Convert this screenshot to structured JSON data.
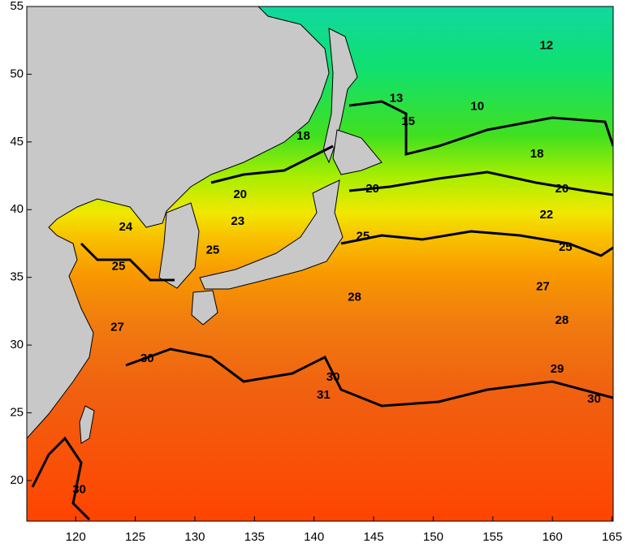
{
  "chart_data": {
    "type": "contour-map",
    "xlim": [
      115.9,
      165.1
    ],
    "ylim": [
      17,
      55
    ],
    "xticks": [
      120,
      125,
      130,
      135,
      140,
      145,
      150,
      155,
      160,
      165
    ],
    "yticks": [
      20,
      25,
      30,
      35,
      40,
      45,
      50,
      55
    ],
    "contour_labels": [
      {
        "value": 10,
        "lon": 153.7,
        "lat": 47.6
      },
      {
        "value": 12,
        "lon": 159.5,
        "lat": 52.1
      },
      {
        "value": 13,
        "lon": 146.9,
        "lat": 48.2
      },
      {
        "value": 15,
        "lon": 147.9,
        "lat": 46.5
      },
      {
        "value": 18,
        "lon": 139.1,
        "lat": 45.4
      },
      {
        "value": 18,
        "lon": 158.7,
        "lat": 44.1
      },
      {
        "value": 20,
        "lon": 133.8,
        "lat": 41.1
      },
      {
        "value": 20,
        "lon": 144.9,
        "lat": 41.5
      },
      {
        "value": 20,
        "lon": 160.8,
        "lat": 41.5
      },
      {
        "value": 22,
        "lon": 159.5,
        "lat": 39.6
      },
      {
        "value": 23,
        "lon": 133.6,
        "lat": 39.1
      },
      {
        "value": 24,
        "lon": 124.2,
        "lat": 38.7
      },
      {
        "value": 25,
        "lon": 131.5,
        "lat": 37.0
      },
      {
        "value": 25,
        "lon": 144.1,
        "lat": 38.0
      },
      {
        "value": 25,
        "lon": 161.1,
        "lat": 37.2
      },
      {
        "value": 25,
        "lon": 123.6,
        "lat": 35.8
      },
      {
        "value": 27,
        "lon": 159.2,
        "lat": 34.3
      },
      {
        "value": 27,
        "lon": 123.5,
        "lat": 31.3
      },
      {
        "value": 28,
        "lon": 143.4,
        "lat": 33.5
      },
      {
        "value": 28,
        "lon": 160.8,
        "lat": 31.8
      },
      {
        "value": 29,
        "lon": 160.4,
        "lat": 28.2
      },
      {
        "value": 30,
        "lon": 126.0,
        "lat": 29.0
      },
      {
        "value": 30,
        "lon": 141.6,
        "lat": 27.6
      },
      {
        "value": 30,
        "lon": 163.5,
        "lat": 26.0
      },
      {
        "value": 31,
        "lon": 140.8,
        "lat": 26.3
      },
      {
        "value": 30,
        "lon": 120.3,
        "lat": 19.3
      }
    ]
  }
}
